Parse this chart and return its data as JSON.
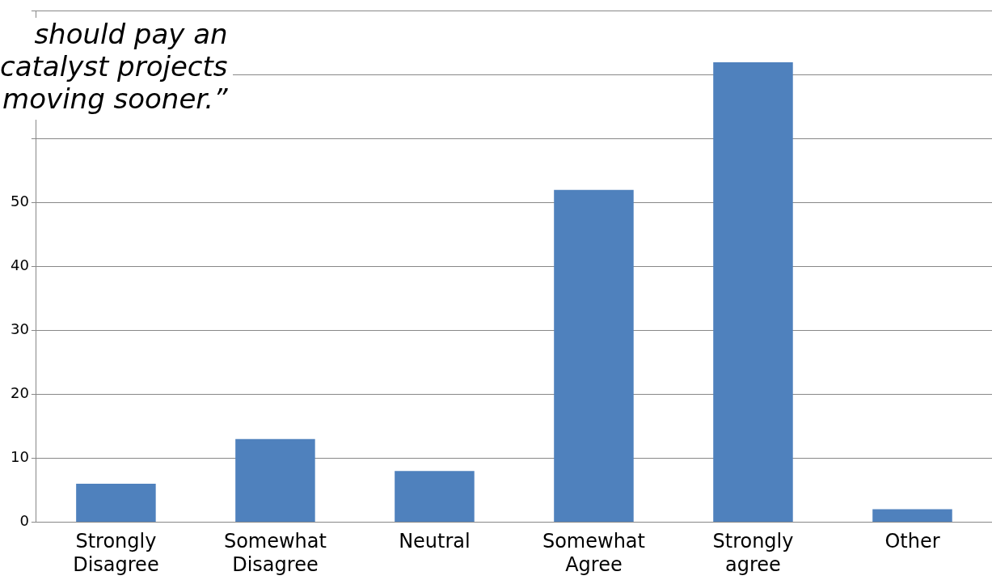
{
  "chart_data": {
    "type": "bar",
    "annotations": [
      "should pay an\ncatalyst projects\nmoving sooner.”"
    ],
    "categories": [
      "Strongly\nDisagree",
      "Somewhat\nDisagree",
      "Neutral",
      "Somewhat\nAgree",
      "Strongly\nagree",
      "Other"
    ],
    "values": [
      6,
      13,
      8,
      52,
      72,
      2
    ],
    "color": "#4f81bd",
    "ylim": [
      0,
      80
    ],
    "yticks": [
      0,
      10,
      20,
      30,
      40,
      50,
      {
        "value": 60,
        "label": null
      },
      {
        "value": 70,
        "label": null
      },
      {
        "value": 80,
        "label": null
      }
    ],
    "grid": "y",
    "legend": false
  }
}
